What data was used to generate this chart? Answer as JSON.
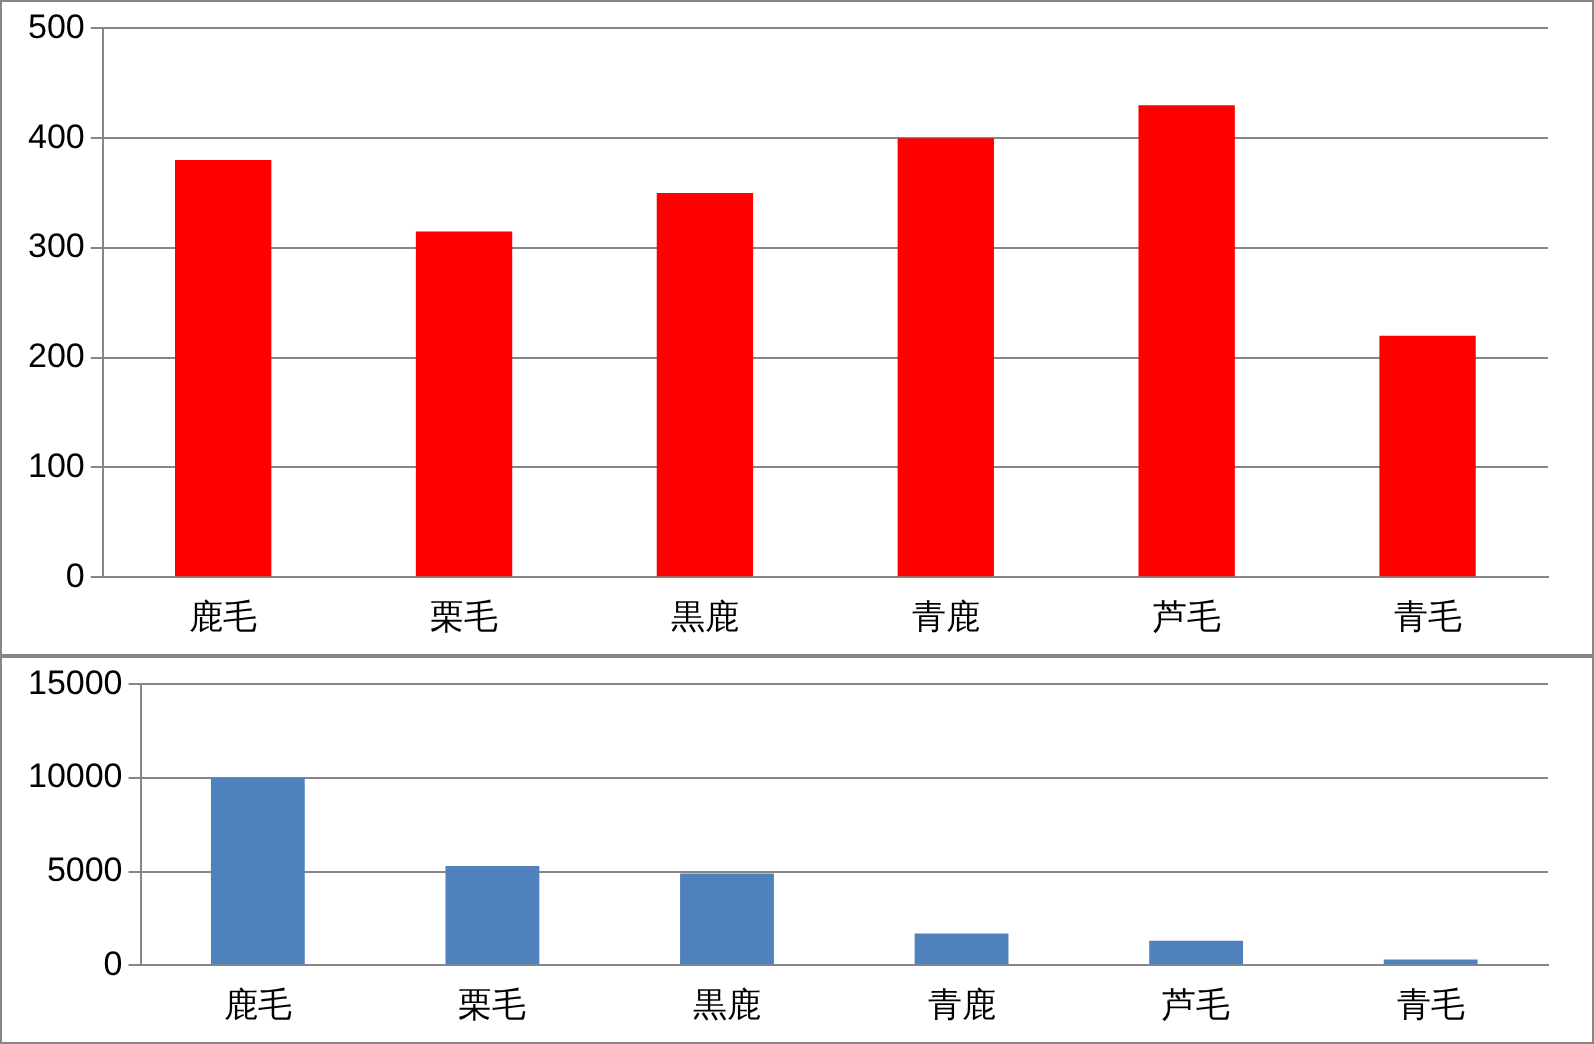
{
  "chart_data": [
    {
      "type": "bar",
      "categories": [
        "鹿毛",
        "栗毛",
        "黒鹿",
        "青鹿",
        "芦毛",
        "青毛"
      ],
      "values": [
        380,
        315,
        350,
        400,
        430,
        220
      ],
      "color": "#ff0000",
      "ylim": [
        0,
        500
      ],
      "yticks": [
        0,
        100,
        200,
        300,
        400,
        500
      ],
      "grid": "y",
      "legend": false
    },
    {
      "type": "bar",
      "categories": [
        "鹿毛",
        "栗毛",
        "黒鹿",
        "青鹿",
        "芦毛",
        "青毛"
      ],
      "values": [
        10000,
        5300,
        4900,
        1700,
        1300,
        300
      ],
      "color": "#4f81bd",
      "ylim": [
        0,
        15000
      ],
      "yticks": [
        0,
        5000,
        10000,
        15000
      ],
      "grid": "y",
      "legend": false
    }
  ]
}
